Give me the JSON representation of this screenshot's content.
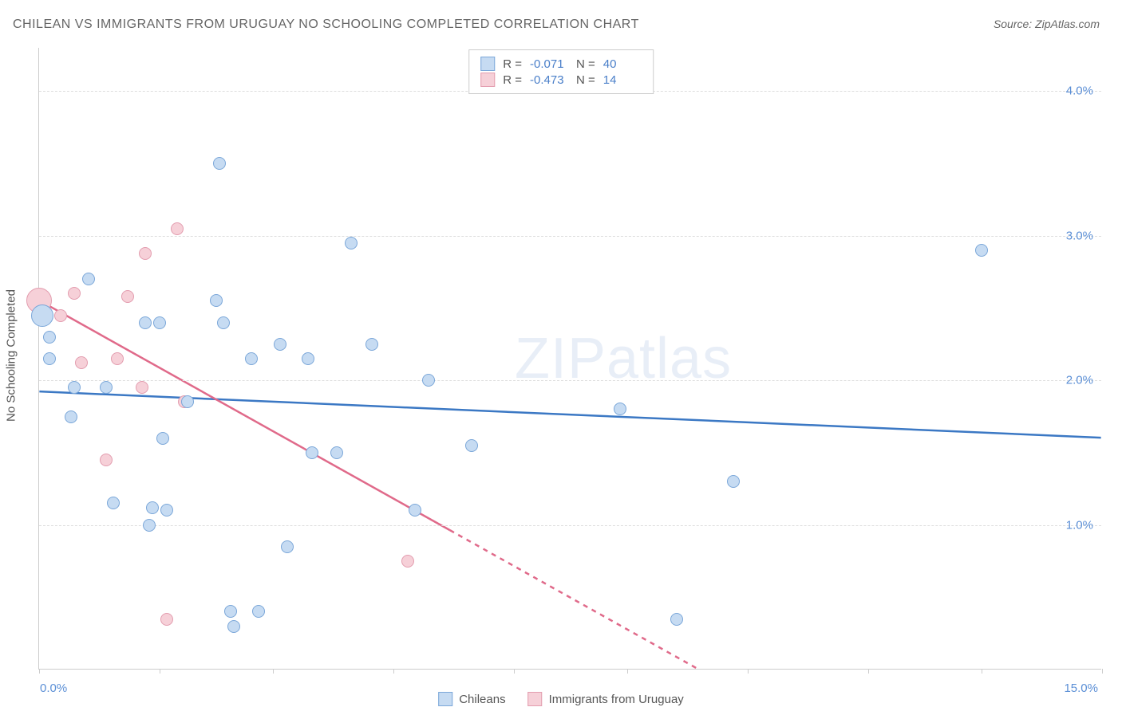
{
  "title": "CHILEAN VS IMMIGRANTS FROM URUGUAY NO SCHOOLING COMPLETED CORRELATION CHART",
  "source_label": "Source: ZipAtlas.com",
  "y_axis_label": "No Schooling Completed",
  "watermark_a": "ZIP",
  "watermark_b": "atlas",
  "plot": {
    "xlim": [
      0,
      15
    ],
    "ylim": [
      0,
      4.3
    ],
    "x_ticks": [
      0,
      1.7,
      3.3,
      5.0,
      6.7,
      8.3,
      10.0,
      11.7,
      13.3,
      15.0
    ],
    "x_tick_labels_shown": {
      "0": "0.0%",
      "15": "15.0%"
    },
    "y_gridlines": [
      1.0,
      2.0,
      3.0,
      4.0
    ],
    "y_tick_labels": {
      "1.0": "1.0%",
      "2.0": "2.0%",
      "3.0": "3.0%",
      "4.0": "4.0%"
    },
    "grid_color": "#dddddd",
    "axis_color": "#cccccc",
    "background": "#ffffff"
  },
  "series": {
    "chileans": {
      "label": "Chileans",
      "fill": "#c6dbf2",
      "stroke": "#7ba7d9",
      "line_color": "#3b78c4",
      "R": "-0.071",
      "N": "40",
      "trend": {
        "x1": 0.0,
        "y1": 1.92,
        "x2": 15.0,
        "y2": 1.6,
        "solid_to_x": 15.0
      },
      "points": [
        {
          "x": 0.05,
          "y": 2.45,
          "r": 14
        },
        {
          "x": 0.15,
          "y": 2.15,
          "r": 8
        },
        {
          "x": 0.15,
          "y": 2.3,
          "r": 8
        },
        {
          "x": 0.45,
          "y": 1.75,
          "r": 8
        },
        {
          "x": 0.5,
          "y": 1.95,
          "r": 8
        },
        {
          "x": 0.7,
          "y": 2.7,
          "r": 8
        },
        {
          "x": 0.95,
          "y": 1.95,
          "r": 8
        },
        {
          "x": 1.05,
          "y": 1.15,
          "r": 8
        },
        {
          "x": 1.5,
          "y": 2.4,
          "r": 8
        },
        {
          "x": 1.55,
          "y": 1.0,
          "r": 8
        },
        {
          "x": 1.6,
          "y": 1.12,
          "r": 8
        },
        {
          "x": 1.7,
          "y": 2.4,
          "r": 8
        },
        {
          "x": 1.75,
          "y": 1.6,
          "r": 8
        },
        {
          "x": 1.8,
          "y": 1.1,
          "r": 8
        },
        {
          "x": 2.1,
          "y": 1.85,
          "r": 8
        },
        {
          "x": 2.5,
          "y": 2.55,
          "r": 8
        },
        {
          "x": 2.55,
          "y": 3.5,
          "r": 8
        },
        {
          "x": 2.6,
          "y": 2.4,
          "r": 8
        },
        {
          "x": 2.7,
          "y": 0.4,
          "r": 8
        },
        {
          "x": 2.75,
          "y": 0.3,
          "r": 8
        },
        {
          "x": 3.0,
          "y": 2.15,
          "r": 8
        },
        {
          "x": 3.1,
          "y": 0.4,
          "r": 8
        },
        {
          "x": 3.4,
          "y": 2.25,
          "r": 8
        },
        {
          "x": 3.5,
          "y": 0.85,
          "r": 8
        },
        {
          "x": 3.8,
          "y": 2.15,
          "r": 8
        },
        {
          "x": 3.85,
          "y": 1.5,
          "r": 8
        },
        {
          "x": 4.2,
          "y": 1.5,
          "r": 8
        },
        {
          "x": 4.4,
          "y": 2.95,
          "r": 8
        },
        {
          "x": 4.7,
          "y": 2.25,
          "r": 8
        },
        {
          "x": 5.3,
          "y": 1.1,
          "r": 8
        },
        {
          "x": 5.5,
          "y": 2.0,
          "r": 8
        },
        {
          "x": 6.1,
          "y": 1.55,
          "r": 8
        },
        {
          "x": 8.2,
          "y": 1.8,
          "r": 8
        },
        {
          "x": 9.0,
          "y": 0.35,
          "r": 8
        },
        {
          "x": 9.8,
          "y": 1.3,
          "r": 8
        },
        {
          "x": 13.3,
          "y": 2.9,
          "r": 8
        }
      ]
    },
    "uruguay": {
      "label": "Immigrants from Uruguay",
      "fill": "#f6d0d8",
      "stroke": "#e39daf",
      "line_color": "#e06a8a",
      "R": "-0.473",
      "N": "14",
      "trend": {
        "x1": 0.0,
        "y1": 2.55,
        "x2": 9.3,
        "y2": 0.0,
        "solid_to_x": 5.8
      },
      "points": [
        {
          "x": 0.0,
          "y": 2.55,
          "r": 16
        },
        {
          "x": 0.3,
          "y": 2.45,
          "r": 8
        },
        {
          "x": 0.5,
          "y": 2.6,
          "r": 8
        },
        {
          "x": 0.6,
          "y": 2.12,
          "r": 8
        },
        {
          "x": 0.95,
          "y": 1.45,
          "r": 8
        },
        {
          "x": 1.1,
          "y": 2.15,
          "r": 8
        },
        {
          "x": 1.25,
          "y": 2.58,
          "r": 8
        },
        {
          "x": 1.45,
          "y": 1.95,
          "r": 8
        },
        {
          "x": 1.5,
          "y": 2.88,
          "r": 8
        },
        {
          "x": 1.8,
          "y": 0.35,
          "r": 8
        },
        {
          "x": 1.95,
          "y": 3.05,
          "r": 8
        },
        {
          "x": 2.05,
          "y": 1.85,
          "r": 8
        },
        {
          "x": 5.2,
          "y": 0.75,
          "r": 8
        }
      ]
    }
  },
  "legend_text": {
    "R_label": "R =",
    "N_label": "N ="
  }
}
